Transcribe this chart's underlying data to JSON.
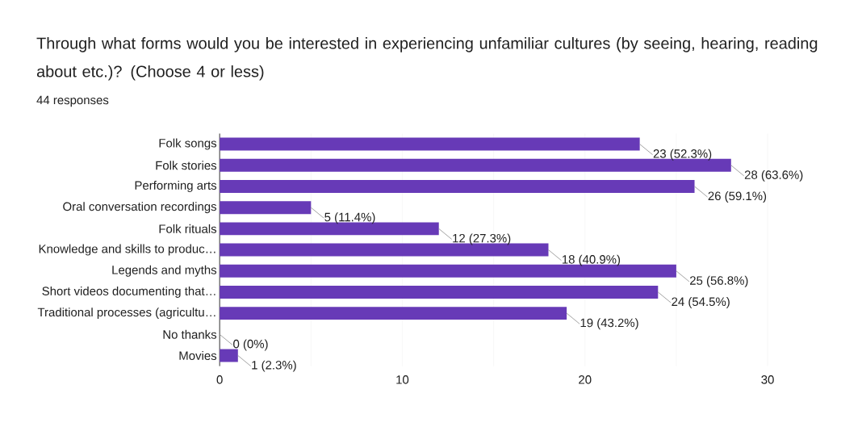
{
  "chart_data": {
    "type": "bar",
    "orientation": "horizontal",
    "title": "Through what forms would you be interested in experiencing unfamiliar cultures (by seeing, hearing, reading about etc.)?    (Choose 4 or less)",
    "subtitle": "44 responses",
    "categories": [
      "Folk songs",
      "Folk stories",
      "Performing arts",
      "Oral conversation recordings",
      "Folk rituals",
      "Knowledge and skills to produc…",
      "Legends and myths",
      "Short videos documenting that…",
      "Traditional processes (agricultu…",
      "No thanks",
      "Movies"
    ],
    "values": [
      23,
      28,
      26,
      5,
      12,
      18,
      25,
      24,
      19,
      0,
      1
    ],
    "value_labels": [
      "23 (52.3%)",
      "28 (63.6%)",
      "26 (59.1%)",
      "5 (11.4%)",
      "12 (27.3%)",
      "18 (40.9%)",
      "25 (56.8%)",
      "24 (54.5%)",
      "19 (43.2%)",
      "0 (0%)",
      "1 (2.3%)"
    ],
    "color": "#673ab7",
    "xlim": [
      0,
      30
    ],
    "xticks": [
      0,
      {
        "value": 5,
        "label": null
      },
      10,
      {
        "value": 15,
        "label": null
      },
      20,
      {
        "value": 25,
        "label": null
      },
      30
    ],
    "grid": "x"
  }
}
